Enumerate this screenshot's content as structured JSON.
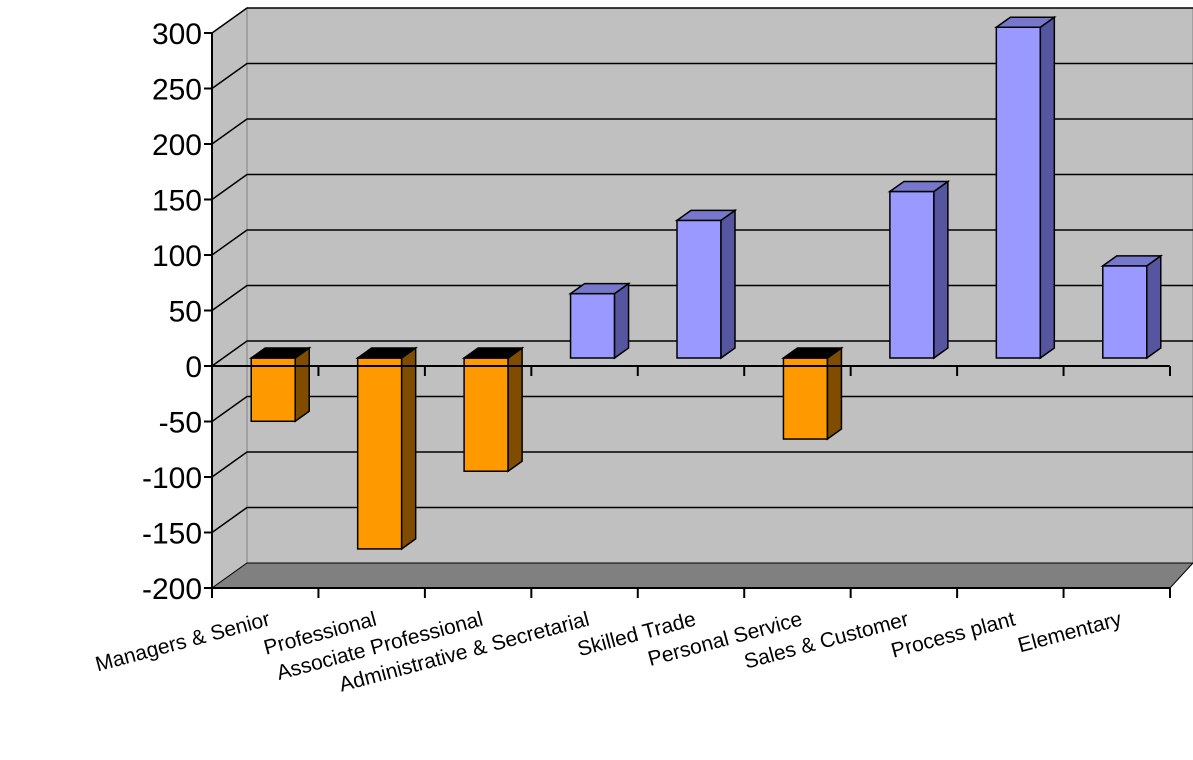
{
  "chart_data": {
    "type": "bar",
    "title": "",
    "xlabel": "",
    "ylabel": "",
    "categories": [
      "Managers & Senior",
      "Professional",
      "Associate Professional",
      "Administrative & Secretarial",
      "Skilled Trade",
      "Personal Service",
      "Sales & Customer",
      "Process plant",
      "Elementary"
    ],
    "values": [
      -57,
      -172,
      -102,
      58,
      124,
      -73,
      150,
      298,
      83
    ],
    "ylim": [
      -200,
      300
    ],
    "yticks": [
      "300",
      "250",
      "200",
      "150",
      "100",
      "50",
      "0",
      "-50",
      "-100",
      "-150",
      "-200"
    ],
    "grid": true,
    "legend": "none",
    "colors": {
      "negative_front": "#ff9900",
      "negative_side": "#7f4c00",
      "negative_top": "#000000",
      "positive_front": "#9999ff",
      "positive_side": "#5555a0",
      "positive_top": "#7777cc",
      "plot_wall": "#c0c0c0",
      "plot_floor": "#808080"
    }
  }
}
